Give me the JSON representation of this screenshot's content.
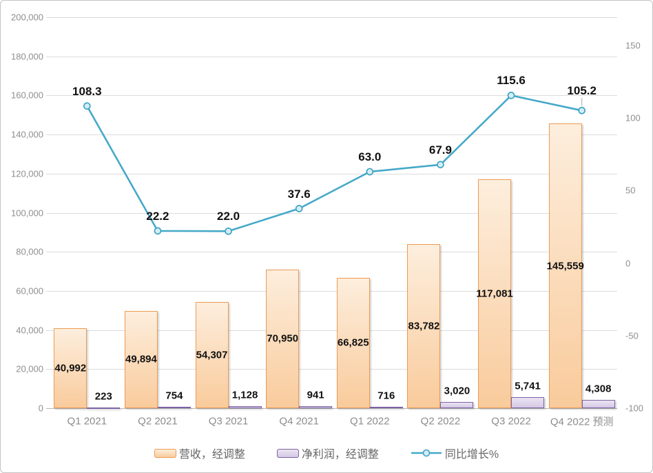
{
  "chart_data": {
    "type": "combo-bar-line",
    "title": "",
    "categories": [
      "Q1 2021",
      "Q2 2021",
      "Q3 2021",
      "Q4 2021",
      "Q1 2022",
      "Q2 2022",
      "Q3 2022",
      "Q4 2022 预测"
    ],
    "series": [
      {
        "name": "营收，经调整",
        "type": "bar",
        "axis": "left",
        "values": [
          40992,
          49894,
          54307,
          70950,
          66825,
          83782,
          117081,
          145559
        ],
        "labels": [
          "40,992",
          "49,894",
          "54,307",
          "70,950",
          "66,825",
          "83,782",
          "117,081",
          "145,559"
        ]
      },
      {
        "name": "净利润，经调整",
        "type": "bar",
        "axis": "left",
        "values": [
          223,
          754,
          1128,
          941,
          716,
          3020,
          5741,
          4308
        ],
        "labels": [
          "223",
          "754",
          "1,128",
          "941",
          "716",
          "3,020",
          "5,741",
          "4,308"
        ]
      },
      {
        "name": "同比增长%",
        "type": "line",
        "axis": "right",
        "values": [
          108.3,
          22.2,
          22.0,
          37.6,
          63.0,
          67.9,
          115.6,
          105.2
        ],
        "labels": [
          "108.3",
          "22.2",
          "22.0",
          "37.6",
          "63.0",
          "67.9",
          "115.6",
          "105.2"
        ]
      }
    ],
    "left_axis": {
      "min": 0,
      "max": 200000,
      "tick_step": 20000,
      "tick_values": [
        0,
        20000,
        40000,
        60000,
        80000,
        100000,
        120000,
        140000,
        160000,
        180000,
        200000
      ],
      "tick_labels": [
        "0",
        "20,000",
        "40,000",
        "60,000",
        "80,000",
        "100,000",
        "120,000",
        "140,000",
        "160,000",
        "180,000",
        "200,000"
      ]
    },
    "right_axis": {
      "min": -100,
      "max": 169.5,
      "tick_values": [
        150,
        100,
        50,
        0,
        -50,
        -100
      ],
      "tick_labels": [
        "150",
        "100",
        "50",
        "0",
        "-50",
        "-100"
      ]
    },
    "grid": "horizontal",
    "legend_position": "bottom"
  },
  "colors": {
    "orange_border": "#ec9a52",
    "orange_top": "#fdeedd",
    "orange_bottom": "#f9cb9c",
    "purple_border": "#7c62a5",
    "purple_top": "#eae4f2",
    "purple_bottom": "#d5c8e5",
    "line": "#45a9c9",
    "marker_fill": "#d6edf5",
    "marker_stroke": "#3fa3c4"
  }
}
